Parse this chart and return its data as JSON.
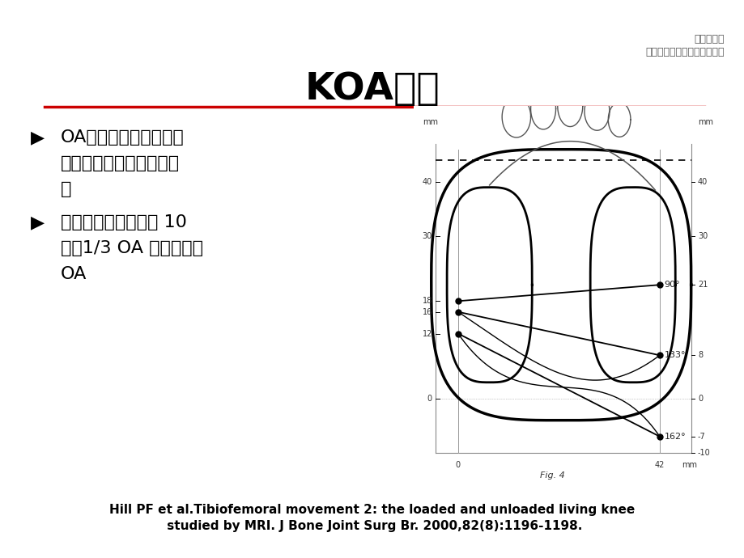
{
  "title": "KOA分型",
  "header_line1": "海口市人医",
  "header_line2": "中南大学湘雅医学院附属海口",
  "bullet1_a": "▶",
  "bullet1_b": "OA：髄股型、外侧间室",
  "bullet1_c": "型、内侧间室型、全关节",
  "bullet1_d": "型",
  "bullet2_a": "▶",
  "bullet2_b": "内侧是外侧间室型的 10",
  "bullet2_c": "倍，1/3 OA 为内侧间室",
  "bullet2_d": "OA",
  "footer_line1": "Hill PF et al.Tibiofemoral movement 2: the loaded and unloaded living knee",
  "footer_line2": " studied by MRI. J Bone Joint Surg Br. 2000,82(8):1196-1198.",
  "fig_caption": "Fig. 4",
  "background_color": "#ffffff",
  "title_color": "#000000",
  "red_line_color": "#cc0000",
  "text_color": "#000000"
}
